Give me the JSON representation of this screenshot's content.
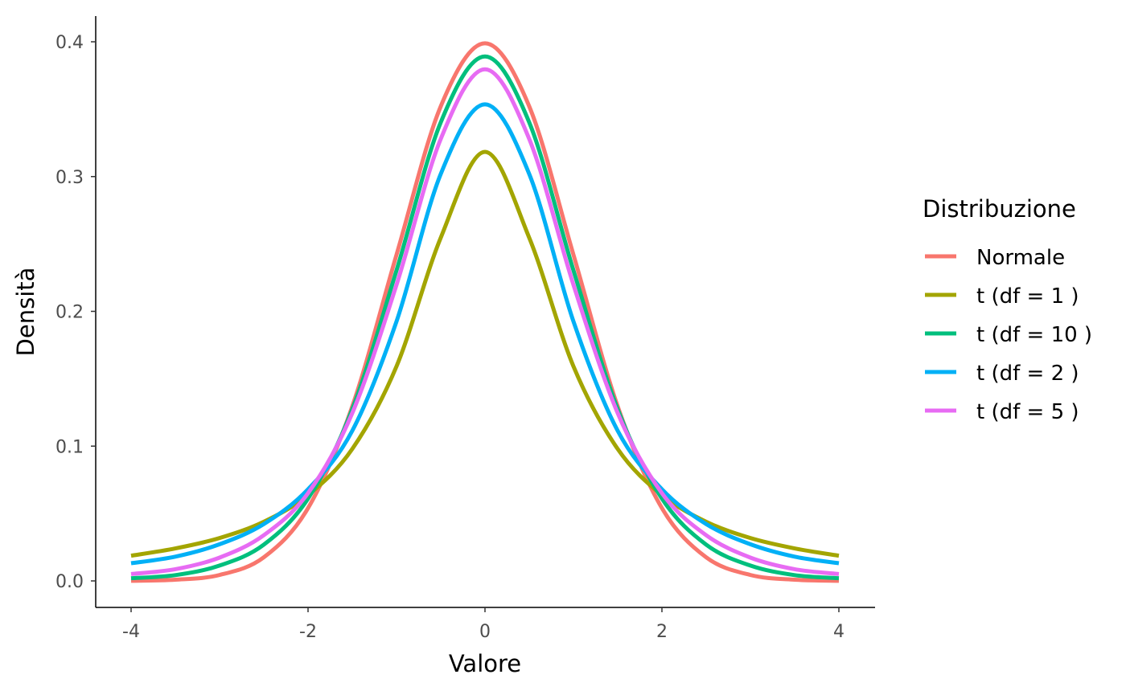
{
  "chart_data": {
    "type": "line",
    "title": "",
    "xlabel": "Valore",
    "ylabel": "Densità",
    "xlim": [
      -4,
      4
    ],
    "ylim": [
      0,
      0.4
    ],
    "x_ticks": [
      -4,
      -2,
      0,
      2,
      4
    ],
    "x_tick_labels": [
      "-4",
      "-2",
      "0",
      "2",
      "4"
    ],
    "y_ticks": [
      0,
      0.1,
      0.2,
      0.3,
      0.4
    ],
    "y_tick_labels": [
      "0.0",
      "0.1",
      "0.2",
      "0.3",
      "0.4"
    ],
    "grid": false,
    "legend_position": "right",
    "legend_title": "Distribuzione",
    "x": [
      -4,
      -3.5,
      -3,
      -2.5,
      -2,
      -1.5,
      -1,
      -0.5,
      0,
      0.5,
      1,
      1.5,
      2,
      2.5,
      3,
      3.5,
      4
    ],
    "series": [
      {
        "name": "Normale",
        "color": "#F8766D",
        "values": [
          0.0001,
          0.0009,
          0.0044,
          0.0175,
          0.054,
          0.1295,
          0.242,
          0.3521,
          0.3989,
          0.3521,
          0.242,
          0.1295,
          0.054,
          0.0175,
          0.0044,
          0.0009,
          0.0001
        ]
      },
      {
        "name": "t (df = 1 )",
        "color": "#A3A500",
        "values": [
          0.0187,
          0.0241,
          0.0318,
          0.0439,
          0.0637,
          0.0979,
          0.1592,
          0.2546,
          0.3183,
          0.2546,
          0.1592,
          0.0979,
          0.0637,
          0.0439,
          0.0318,
          0.0241,
          0.0187
        ]
      },
      {
        "name": "t (df = 10 )",
        "color": "#00BF7D",
        "values": [
          0.002,
          0.0043,
          0.0114,
          0.0269,
          0.0611,
          0.1274,
          0.2304,
          0.3402,
          0.3891,
          0.3402,
          0.2304,
          0.1274,
          0.0611,
          0.0269,
          0.0114,
          0.0043,
          0.002
        ]
      },
      {
        "name": "t (df = 2 )",
        "color": "#00B0F6",
        "values": [
          0.0131,
          0.018,
          0.0272,
          0.0422,
          0.068,
          0.1114,
          0.1925,
          0.3019,
          0.3536,
          0.3019,
          0.1925,
          0.1114,
          0.068,
          0.0422,
          0.0272,
          0.018,
          0.0131
        ]
      },
      {
        "name": "t (df = 5 )",
        "color": "#E76BF3",
        "values": [
          0.0051,
          0.0087,
          0.0173,
          0.0339,
          0.0651,
          0.1245,
          0.2197,
          0.3279,
          0.3796,
          0.3279,
          0.2197,
          0.1245,
          0.0651,
          0.0339,
          0.0173,
          0.0087,
          0.0051
        ]
      }
    ]
  }
}
